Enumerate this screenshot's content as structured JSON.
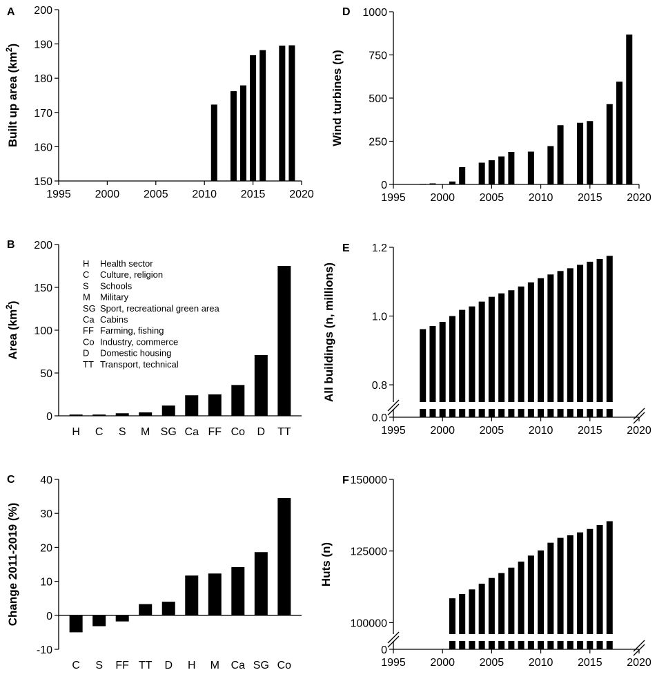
{
  "colors": {
    "bar": "#000000",
    "axis": "#000000",
    "background": "#ffffff"
  },
  "chart_data": [
    {
      "id": "A",
      "panel_label": "A",
      "type": "bar",
      "ylabel": "Built up area (km",
      "ylabel_sup": "2",
      "ylabel_tail": ")",
      "xlim": [
        1995,
        2020
      ],
      "ylim": [
        150,
        200
      ],
      "xticks": [
        1995,
        2000,
        2005,
        2010,
        2015,
        2020
      ],
      "yticks": [
        150,
        160,
        170,
        180,
        190,
        200
      ],
      "x": [
        2011,
        2013,
        2014,
        2015,
        2016,
        2018,
        2019
      ],
      "values": [
        172.3,
        176.2,
        177.9,
        186.7,
        188.2,
        189.5,
        189.6
      ]
    },
    {
      "id": "B",
      "panel_label": "B",
      "type": "bar",
      "ylabel": "Area (km",
      "ylabel_sup": "2",
      "ylabel_tail": ")",
      "ylim": [
        0,
        200
      ],
      "yticks": [
        0,
        50,
        100,
        150,
        200
      ],
      "categories": [
        "H",
        "C",
        "S",
        "M",
        "SG",
        "Ca",
        "FF",
        "Co",
        "D",
        "TT"
      ],
      "values": [
        1.5,
        1.5,
        3,
        4,
        12,
        24,
        25,
        36,
        71,
        175
      ],
      "legend": [
        {
          "code": "H",
          "name": "Health sector"
        },
        {
          "code": "C",
          "name": "Culture, religion"
        },
        {
          "code": "S",
          "name": "Schools"
        },
        {
          "code": "M",
          "name": "Military"
        },
        {
          "code": "SG",
          "name": "Sport, recreational green area"
        },
        {
          "code": "Ca",
          "name": "Cabins"
        },
        {
          "code": "FF",
          "name": "Farming, fishing"
        },
        {
          "code": "Co",
          "name": "Industry, commerce"
        },
        {
          "code": "D",
          "name": "Domestic housing"
        },
        {
          "code": "TT",
          "name": "Transport, technical"
        }
      ]
    },
    {
      "id": "C",
      "panel_label": "C",
      "type": "bar",
      "ylabel": "Change 2011-2019 (%)",
      "ylim": [
        -10,
        40
      ],
      "yticks": [
        -10,
        0,
        10,
        20,
        30,
        40
      ],
      "categories": [
        "C",
        "S",
        "FF",
        "TT",
        "D",
        "H",
        "M",
        "Ca",
        "SG",
        "Co"
      ],
      "values": [
        -5,
        -3.2,
        -1.8,
        3.3,
        4,
        11.7,
        12.3,
        14.2,
        18.6,
        34.5
      ]
    },
    {
      "id": "D",
      "panel_label": "D",
      "type": "bar",
      "ylabel": "Wind turbines (n)",
      "xlim": [
        1995,
        2020
      ],
      "ylim": [
        0,
        1000
      ],
      "xticks": [
        1995,
        2000,
        2005,
        2010,
        2015,
        2020
      ],
      "yticks": [
        0,
        250,
        500,
        750,
        1000
      ],
      "x": [
        1998,
        1999,
        2001,
        2002,
        2004,
        2005,
        2006,
        2007,
        2009,
        2011,
        2012,
        2014,
        2015,
        2017,
        2018,
        2019
      ],
      "values": [
        3,
        6,
        17,
        100,
        126,
        140,
        162,
        188,
        190,
        222,
        343,
        357,
        367,
        465,
        595,
        868
      ]
    },
    {
      "id": "E",
      "panel_label": "E",
      "type": "bar",
      "ylabel": "All buildings (n, millions)",
      "xlim": [
        1995,
        2020
      ],
      "ylim": [
        0.75,
        1.2
      ],
      "axis_break": true,
      "break_lower": 0.0,
      "xticks": [
        1995,
        2000,
        2005,
        2010,
        2015,
        2020
      ],
      "ytick_labels": [
        "0.0",
        "0.8",
        "1.0",
        "1.2"
      ],
      "x": [
        1998,
        1999,
        2000,
        2001,
        2002,
        2003,
        2004,
        2005,
        2006,
        2007,
        2008,
        2009,
        2010,
        2011,
        2012,
        2013,
        2014,
        2015,
        2016,
        2017
      ],
      "values": [
        0.962,
        0.971,
        0.983,
        1.0,
        1.018,
        1.028,
        1.042,
        1.056,
        1.066,
        1.075,
        1.086,
        1.098,
        1.11,
        1.121,
        1.131,
        1.139,
        1.149,
        1.158,
        1.166,
        1.175
      ]
    },
    {
      "id": "F",
      "panel_label": "F",
      "type": "bar",
      "ylabel": "Huts (n)",
      "xlim": [
        1995,
        2020
      ],
      "ylim": [
        96000,
        150000
      ],
      "axis_break": true,
      "break_lower": 0,
      "xticks": [
        1995,
        2000,
        2005,
        2010,
        2015,
        2020
      ],
      "ytick_labels": [
        "0",
        "100000",
        "125000",
        "150000"
      ],
      "x": [
        2001,
        2002,
        2003,
        2004,
        2005,
        2006,
        2007,
        2008,
        2009,
        2010,
        2011,
        2012,
        2013,
        2014,
        2015,
        2016,
        2017
      ],
      "values": [
        108500,
        110000,
        111600,
        113600,
        115600,
        117300,
        119200,
        121300,
        123400,
        125200,
        127900,
        129600,
        130500,
        131500,
        132700,
        134100,
        135400
      ]
    }
  ]
}
